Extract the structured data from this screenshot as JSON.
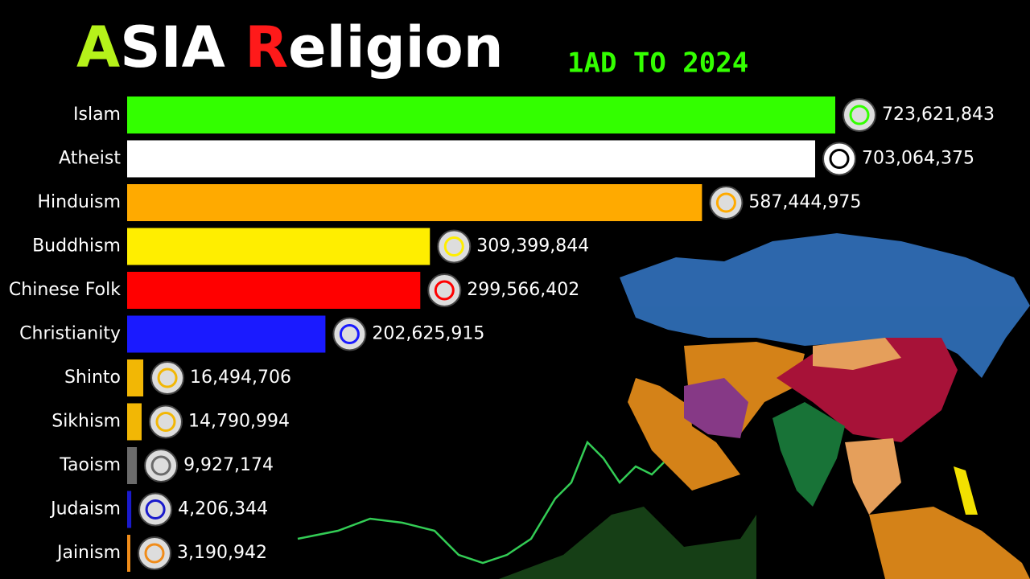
{
  "chart_data": {
    "type": "bar",
    "orientation": "horizontal",
    "title": "ASIA Religion",
    "title_accent_colors": [
      "#b5f21a",
      "#ff1a1a"
    ],
    "subtitle": "1AD TO 2024",
    "categories": [
      "Islam",
      "Atheist",
      "Hinduism",
      "Buddhism",
      "Chinese Folk",
      "Christianity",
      "Shinto",
      "Sikhism",
      "Taoism",
      "Judaism",
      "Jainism"
    ],
    "values": [
      723621843,
      703064375,
      587444975,
      309399844,
      299566402,
      202625915,
      16494706,
      14790994,
      9927174,
      4206344,
      3190942
    ],
    "value_labels": [
      "723,621,843",
      "703,064,375",
      "587,444,975",
      "309,399,844",
      "299,566,402",
      "202,625,915",
      "16,494,706",
      "14,790,994",
      "9,927,174",
      "4,206,344",
      "3,190,942"
    ],
    "colors": [
      "#33ff00",
      "#ffffff",
      "#ffaa00",
      "#ffee00",
      "#ff0000",
      "#1a1aff",
      "#f2b705",
      "#f2b705",
      "#6b6b6b",
      "#1a1acc",
      "#f08c1a"
    ]
  }
}
